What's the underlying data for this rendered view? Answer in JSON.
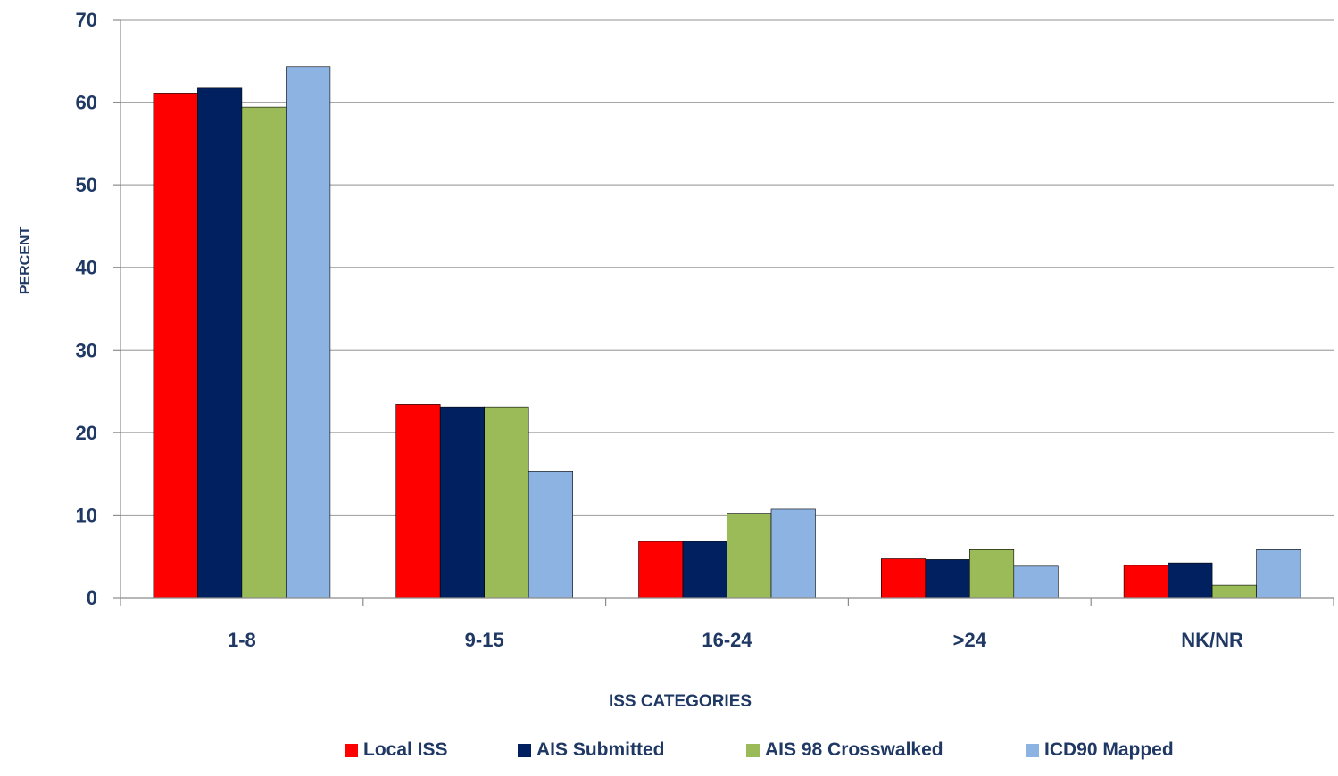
{
  "chart_data": {
    "type": "bar",
    "title": "",
    "xlabel": "ISS CATEGORIES",
    "ylabel": "PERCENT",
    "ylim": [
      0,
      70
    ],
    "yticks": [
      0,
      10,
      20,
      30,
      40,
      50,
      60,
      70
    ],
    "grid": true,
    "legend_position": "bottom",
    "categories": [
      "1-8",
      "9-15",
      "16-24",
      ">24",
      "NK/NR"
    ],
    "series": [
      {
        "name": "Local ISS",
        "color": "#ff0000",
        "values": [
          61.1,
          23.4,
          6.8,
          4.7,
          3.9
        ]
      },
      {
        "name": "AIS Submitted",
        "color": "#002060",
        "values": [
          61.7,
          23.1,
          6.8,
          4.6,
          4.2
        ]
      },
      {
        "name": "AIS 98 Crosswalked",
        "color": "#9bbb59",
        "values": [
          59.4,
          23.1,
          10.2,
          5.8,
          1.5
        ]
      },
      {
        "name": "ICD90 Mapped",
        "color": "#8db3e2",
        "values": [
          64.3,
          15.3,
          10.7,
          3.8,
          5.8
        ]
      }
    ]
  }
}
